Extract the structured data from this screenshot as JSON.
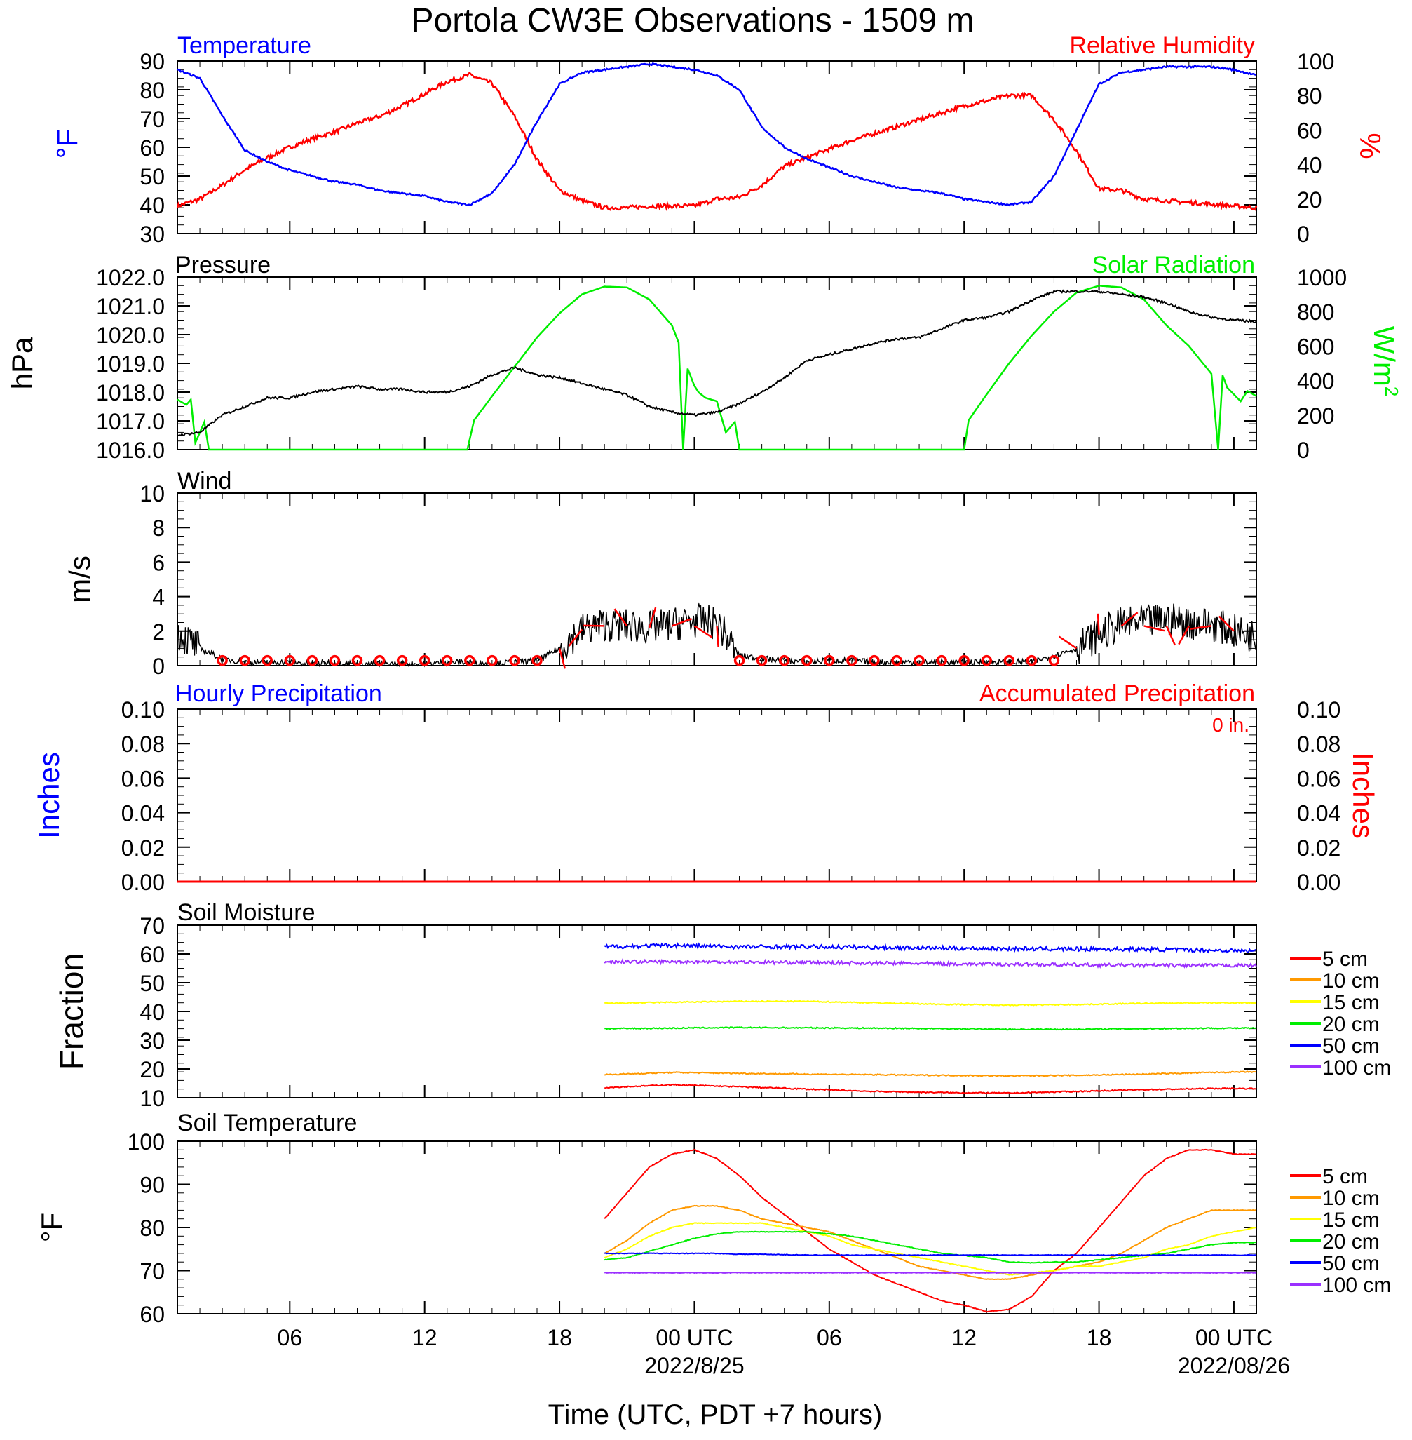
{
  "title": "Portola CW3E Observations - 1509 m",
  "xlabel": "Time (UTC, PDT +7 hours)",
  "colors": {
    "blue": "#0000ff",
    "red": "#ff0000",
    "green": "#00ee00",
    "black": "#000000",
    "orange": "#ff9900",
    "yellow": "#ffff00",
    "purple": "#9b30ff"
  },
  "x_axis": {
    "range_hours": [
      0,
      48
    ],
    "ticks": [
      {
        "h": 5,
        "label": "06",
        "date": ""
      },
      {
        "h": 11,
        "label": "12",
        "date": ""
      },
      {
        "h": 17,
        "label": "18",
        "date": ""
      },
      {
        "h": 23,
        "label": "00 UTC",
        "date": "2022/8/25"
      },
      {
        "h": 29,
        "label": "06",
        "date": ""
      },
      {
        "h": 35,
        "label": "12",
        "date": ""
      },
      {
        "h": 41,
        "label": "18",
        "date": ""
      },
      {
        "h": 47,
        "label": "00 UTC",
        "date": "2022/08/26"
      }
    ]
  },
  "panels": {
    "temp_rh": {
      "left_title": "Temperature",
      "right_title": "Relative Humidity",
      "left_unit": "°F",
      "right_unit": "%",
      "left_ticks": [
        "30",
        "40",
        "50",
        "60",
        "70",
        "80",
        "90"
      ],
      "right_ticks": [
        "0",
        "20",
        "40",
        "60",
        "80",
        "100"
      ]
    },
    "pressure_solar": {
      "left_title": "Pressure",
      "right_title": "Solar Radiation",
      "left_unit": "hPa",
      "right_unit": "W/m",
      "right_unit_sup": "2",
      "left_ticks": [
        "1016.0",
        "1017.0",
        "1018.0",
        "1019.0",
        "1020.0",
        "1021.0",
        "1022.0"
      ],
      "right_ticks": [
        "0",
        "200",
        "400",
        "600",
        "800",
        "1000"
      ]
    },
    "wind": {
      "left_title": "Wind",
      "left_unit": "m/s",
      "left_ticks": [
        "0",
        "2",
        "4",
        "6",
        "8",
        "10"
      ]
    },
    "precip": {
      "left_title": "Hourly Precipitation",
      "right_title": "Accumulated Precipitation",
      "accum_text": "0 in.",
      "left_unit": "Inches",
      "right_unit": "Inches",
      "left_ticks": [
        "0.00",
        "0.02",
        "0.04",
        "0.06",
        "0.08",
        "0.10"
      ],
      "right_ticks": [
        "0.00",
        "0.02",
        "0.04",
        "0.06",
        "0.08",
        "0.10"
      ]
    },
    "soil_moisture": {
      "left_title": "Soil Moisture",
      "left_unit": "Fraction",
      "left_ticks": [
        "10",
        "20",
        "30",
        "40",
        "50",
        "60",
        "70"
      ],
      "legend": [
        "5 cm",
        "10 cm",
        "15 cm",
        "20 cm",
        "50 cm",
        "100 cm"
      ]
    },
    "soil_temp": {
      "left_title": "Soil Temperature",
      "left_unit": "°F",
      "left_ticks": [
        "60",
        "70",
        "80",
        "90",
        "100"
      ],
      "legend": [
        "5 cm",
        "10 cm",
        "15 cm",
        "20 cm",
        "50 cm",
        "100 cm"
      ]
    }
  },
  "chart_data": [
    {
      "type": "line",
      "title": "Temperature / Relative Humidity",
      "series": [
        {
          "name": "Temperature",
          "axis": "left",
          "unit": "°F",
          "ylim": [
            30,
            90
          ],
          "x": [
            0,
            1,
            2,
            3,
            4,
            5,
            6,
            7,
            8,
            9,
            10,
            11,
            12,
            13,
            14,
            15,
            16,
            17,
            18,
            19,
            20,
            21,
            22,
            23,
            24,
            25,
            26,
            27,
            28,
            29,
            30,
            31,
            32,
            33,
            34,
            35,
            36,
            37,
            38,
            39,
            40,
            41,
            42,
            43,
            44,
            45,
            46,
            47,
            48
          ],
          "values": [
            87,
            84,
            71,
            59,
            55,
            52,
            50,
            48,
            47,
            45,
            44,
            43,
            41,
            40,
            44,
            54,
            69,
            82,
            86,
            87,
            88,
            89,
            88,
            87,
            85,
            80,
            67,
            60,
            56,
            53,
            50,
            48,
            46,
            45,
            44,
            42,
            41,
            40,
            41,
            50,
            66,
            82,
            86,
            87,
            88,
            88,
            88,
            87,
            85
          ]
        },
        {
          "name": "Relative Humidity",
          "axis": "right",
          "unit": "%",
          "ylim": [
            0,
            100
          ],
          "x": [
            0,
            1,
            2,
            3,
            4,
            5,
            6,
            7,
            8,
            9,
            10,
            11,
            12,
            13,
            14,
            15,
            16,
            17,
            18,
            19,
            20,
            21,
            22,
            23,
            24,
            25,
            26,
            27,
            28,
            29,
            30,
            31,
            32,
            33,
            34,
            35,
            36,
            37,
            38,
            39,
            40,
            41,
            42,
            43,
            44,
            45,
            46,
            47,
            48
          ],
          "values": [
            16,
            20,
            28,
            37,
            44,
            50,
            55,
            59,
            64,
            68,
            74,
            81,
            88,
            92,
            87,
            68,
            43,
            25,
            19,
            15,
            15,
            16,
            16,
            16,
            20,
            21,
            28,
            39,
            44,
            49,
            54,
            58,
            62,
            66,
            70,
            74,
            77,
            80,
            80,
            66,
            48,
            26,
            25,
            20,
            19,
            18,
            17,
            16,
            15
          ]
        }
      ]
    },
    {
      "type": "line",
      "title": "Pressure / Solar Radiation",
      "series": [
        {
          "name": "Pressure",
          "axis": "left",
          "unit": "hPa",
          "ylim": [
            1016,
            1022
          ],
          "x": [
            0,
            1,
            2,
            3,
            4,
            5,
            6,
            7,
            8,
            9,
            10,
            11,
            12,
            13,
            14,
            15,
            16,
            17,
            18,
            19,
            20,
            21,
            22,
            23,
            24,
            25,
            26,
            27,
            28,
            29,
            30,
            31,
            32,
            33,
            34,
            35,
            36,
            37,
            38,
            39,
            40,
            41,
            42,
            43,
            44,
            45,
            46,
            47,
            48
          ],
          "values": [
            1016.5,
            1016.6,
            1017.2,
            1017.5,
            1017.8,
            1017.8,
            1018.0,
            1018.1,
            1018.2,
            1018.1,
            1018.1,
            1018.0,
            1018.0,
            1018.2,
            1018.6,
            1018.85,
            1018.6,
            1018.5,
            1018.3,
            1018.1,
            1017.9,
            1017.5,
            1017.3,
            1017.2,
            1017.3,
            1017.6,
            1018.0,
            1018.5,
            1019.1,
            1019.3,
            1019.5,
            1019.7,
            1019.85,
            1019.9,
            1020.2,
            1020.5,
            1020.6,
            1020.8,
            1021.2,
            1021.5,
            1021.5,
            1021.5,
            1021.4,
            1021.3,
            1021.1,
            1020.8,
            1020.6,
            1020.5,
            1020.45
          ]
        },
        {
          "name": "Solar Radiation",
          "axis": "right",
          "unit": "W/m2",
          "ylim": [
            0,
            1000
          ],
          "x": [
            0,
            0.4,
            0.6,
            0.8,
            1.0,
            1.2,
            1.4,
            1.8,
            12.9,
            13.2,
            14,
            15,
            16,
            17,
            18,
            19,
            20,
            21,
            22,
            22.3,
            22.5,
            22.7,
            23.0,
            23.2,
            23.5,
            24.0,
            24.4,
            24.8,
            25.0,
            25.5,
            35.0,
            35.2,
            36,
            37,
            38,
            39,
            40,
            41,
            42,
            43,
            44,
            45,
            46,
            46.3,
            46.5,
            46.7,
            47,
            47.3,
            47.6,
            48
          ],
          "values": [
            290,
            260,
            290,
            40,
            100,
            160,
            0,
            0,
            0,
            170,
            310,
            480,
            650,
            790,
            900,
            945,
            940,
            870,
            720,
            620,
            0,
            470,
            370,
            330,
            300,
            280,
            100,
            160,
            0,
            0,
            0,
            170,
            320,
            500,
            660,
            800,
            910,
            950,
            940,
            870,
            720,
            600,
            440,
            0,
            430,
            360,
            320,
            280,
            340,
            310
          ]
        }
      ]
    },
    {
      "type": "line",
      "title": "Wind",
      "ylim": [
        0,
        10
      ],
      "unit": "m/s",
      "x": [
        0,
        1,
        2,
        3,
        4,
        5,
        6,
        7,
        8,
        9,
        10,
        11,
        12,
        13,
        14,
        15,
        16,
        17,
        18,
        19,
        20,
        21,
        22,
        23,
        24,
        25,
        26,
        27,
        28,
        29,
        30,
        31,
        32,
        33,
        34,
        35,
        36,
        37,
        38,
        39,
        40,
        41,
        42,
        43,
        44,
        45,
        46,
        47,
        48
      ],
      "values": [
        1.9,
        1.0,
        0.4,
        0.2,
        0.2,
        0.2,
        0.1,
        0.2,
        0.1,
        0.1,
        0.1,
        0.1,
        0.2,
        0.2,
        0.1,
        0.2,
        0.3,
        1.0,
        2.1,
        2.4,
        2.3,
        2.2,
        2.4,
        2.6,
        2.5,
        0.6,
        0.4,
        0.3,
        0.2,
        0.3,
        0.3,
        0.2,
        0.2,
        0.2,
        0.2,
        0.2,
        0.2,
        0.2,
        0.2,
        0.6,
        1.0,
        1.8,
        2.4,
        2.5,
        2.7,
        2.5,
        2.4,
        2.0,
        1.7
      ],
      "barb_hours": [
        2,
        3,
        4,
        5,
        6,
        7,
        8,
        9,
        10,
        11,
        12,
        13,
        14,
        15,
        16,
        17,
        18,
        19,
        20,
        21,
        22,
        23,
        24,
        25,
        26,
        27,
        28,
        29,
        30,
        31,
        32,
        33,
        34,
        35,
        36,
        37,
        38,
        39,
        40,
        41,
        42,
        43,
        44,
        45,
        46,
        47
      ]
    },
    {
      "type": "line",
      "title": "Precipitation",
      "series": [
        {
          "name": "Hourly Precipitation",
          "unit": "Inches",
          "ylim": [
            0,
            0.1
          ],
          "x": [
            0,
            48
          ],
          "values": [
            0,
            0
          ]
        },
        {
          "name": "Accumulated Precipitation",
          "unit": "Inches",
          "ylim": [
            0,
            0.1
          ],
          "x": [
            0,
            48
          ],
          "values": [
            0,
            0
          ]
        }
      ]
    },
    {
      "type": "line",
      "title": "Soil Moisture",
      "ylim": [
        10,
        70
      ],
      "x": [
        19,
        22,
        25,
        28,
        31,
        34,
        37,
        40,
        43,
        46,
        48
      ],
      "series": [
        {
          "name": "5 cm",
          "values": [
            13.5,
            14.5,
            13.8,
            13,
            12.2,
            11.8,
            11.6,
            12.2,
            12.8,
            13.2,
            13.2
          ]
        },
        {
          "name": "10 cm",
          "values": [
            18,
            18.8,
            18.5,
            18.2,
            18,
            17.8,
            17.6,
            17.8,
            18.2,
            18.8,
            19
          ]
        },
        {
          "name": "15 cm",
          "values": [
            42.8,
            43.2,
            43.5,
            43.5,
            43,
            42.5,
            42.2,
            42.4,
            42.8,
            43,
            43
          ]
        },
        {
          "name": "20 cm",
          "values": [
            34,
            34.2,
            34.4,
            34.3,
            34.2,
            34,
            33.8,
            33.8,
            34,
            34.2,
            34.2
          ]
        },
        {
          "name": "50 cm",
          "values": [
            62.5,
            63,
            62.5,
            62.5,
            62.3,
            62,
            61.8,
            61.7,
            61.6,
            61.3,
            61
          ]
        },
        {
          "name": "100 cm",
          "values": [
            57.3,
            57.3,
            57.2,
            57,
            56.8,
            56.6,
            56.4,
            56.2,
            56,
            56,
            56
          ]
        }
      ]
    },
    {
      "type": "line",
      "title": "Soil Temperature",
      "ylim": [
        60,
        100
      ],
      "x": [
        19,
        20,
        21,
        22,
        23,
        24,
        25,
        26,
        27,
        28,
        29,
        30,
        31,
        32,
        33,
        34,
        35,
        36,
        37,
        38,
        39,
        40,
        41,
        42,
        43,
        44,
        45,
        46,
        47,
        48
      ],
      "series": [
        {
          "name": "5 cm",
          "values": [
            82,
            88,
            94,
            97,
            98,
            96,
            92,
            87,
            83,
            79,
            75,
            72,
            69,
            67,
            65,
            63,
            62,
            60.5,
            61,
            64,
            70,
            74,
            80,
            86,
            92,
            96,
            98,
            98,
            97,
            97
          ]
        },
        {
          "name": "10 cm",
          "values": [
            74,
            77,
            81,
            84,
            85,
            85,
            84,
            82,
            81,
            80,
            79,
            77,
            75,
            73,
            71,
            70,
            69,
            68,
            68,
            69,
            70,
            71,
            72,
            74,
            77,
            80,
            82,
            84,
            84,
            84
          ]
        },
        {
          "name": "15 cm",
          "values": [
            73,
            75,
            78,
            80,
            81,
            81,
            81,
            81,
            80,
            79,
            78,
            76,
            75,
            74,
            73,
            72,
            71,
            70,
            69,
            69.5,
            70,
            71,
            71,
            72,
            73,
            75,
            76,
            78,
            79,
            80
          ]
        },
        {
          "name": "20 cm",
          "values": [
            72.5,
            73,
            74.5,
            76,
            77.5,
            78.5,
            79,
            79,
            79,
            79,
            78.5,
            78,
            77,
            76,
            75,
            74,
            73.5,
            73,
            72,
            71.8,
            72,
            72,
            72.5,
            73,
            73.5,
            74,
            75,
            76,
            76.5,
            76.5
          ]
        },
        {
          "name": "50 cm",
          "values": [
            74,
            74,
            74,
            74,
            74,
            74,
            73.8,
            73.8,
            73.7,
            73.6,
            73.6,
            73.6,
            73.6,
            73.6,
            73.6,
            73.6,
            73.6,
            73.6,
            73.6,
            73.6,
            73.6,
            73.6,
            73.6,
            73.6,
            73.6,
            73.6,
            73.6,
            73.6,
            73.6,
            73.6
          ]
        },
        {
          "name": "100 cm",
          "values": [
            69.5,
            69.5,
            69.5,
            69.5,
            69.5,
            69.5,
            69.5,
            69.5,
            69.5,
            69.5,
            69.5,
            69.5,
            69.5,
            69.5,
            69.5,
            69.5,
            69.5,
            69.5,
            69.5,
            69.5,
            69.5,
            69.5,
            69.5,
            69.5,
            69.5,
            69.5,
            69.5,
            69.5,
            69.5,
            69.5
          ]
        }
      ]
    }
  ]
}
